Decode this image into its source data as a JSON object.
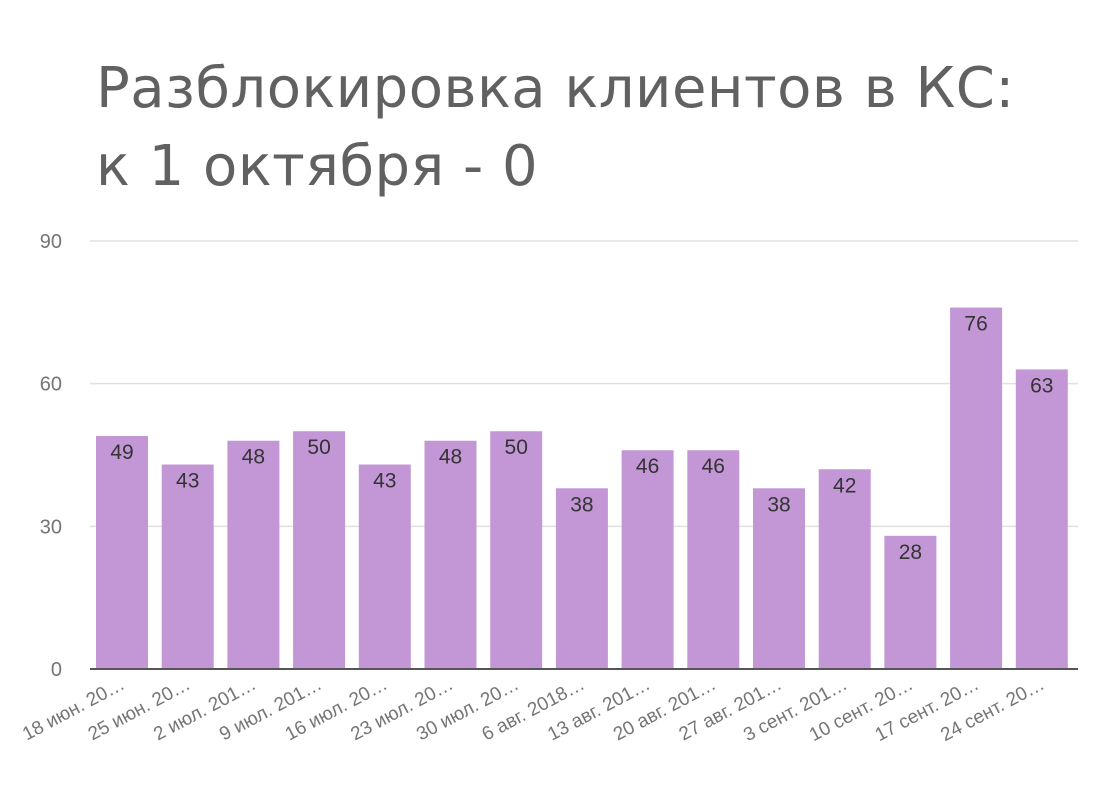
{
  "title": {
    "line1": "Разблокировка клиентов в КС:",
    "line2": "к 1 октября - 0"
  },
  "chart_data": {
    "type": "bar",
    "title": "Разблокировка клиентов в КС: к 1 октября - 0",
    "xlabel": "",
    "ylabel": "",
    "categories": [
      "18 июн. 20…",
      "25 июн. 20…",
      "2 июл. 201…",
      "9 июл. 201…",
      "16 июл. 20…",
      "23 июл. 20…",
      "30 июл. 20…",
      "6 авг. 2018…",
      "13 авг. 201…",
      "20 авг. 201…",
      "27 авг. 201…",
      "3 сент. 201…",
      "10 сент. 20…",
      "17 сент. 20…",
      "24 сент. 20…"
    ],
    "values": [
      49,
      43,
      48,
      50,
      43,
      48,
      50,
      38,
      46,
      46,
      38,
      42,
      28,
      76,
      63
    ],
    "ylim": [
      0,
      90
    ],
    "yticks": [
      0,
      30,
      60,
      90
    ],
    "grid": true,
    "legend": "none",
    "data_labels": true
  },
  "colors": {
    "bar": "#c397d6",
    "title": "#616161",
    "grid": "#e0e0e0",
    "axis": "#555555",
    "tick_text": "#757575",
    "data_label": "#333333"
  }
}
